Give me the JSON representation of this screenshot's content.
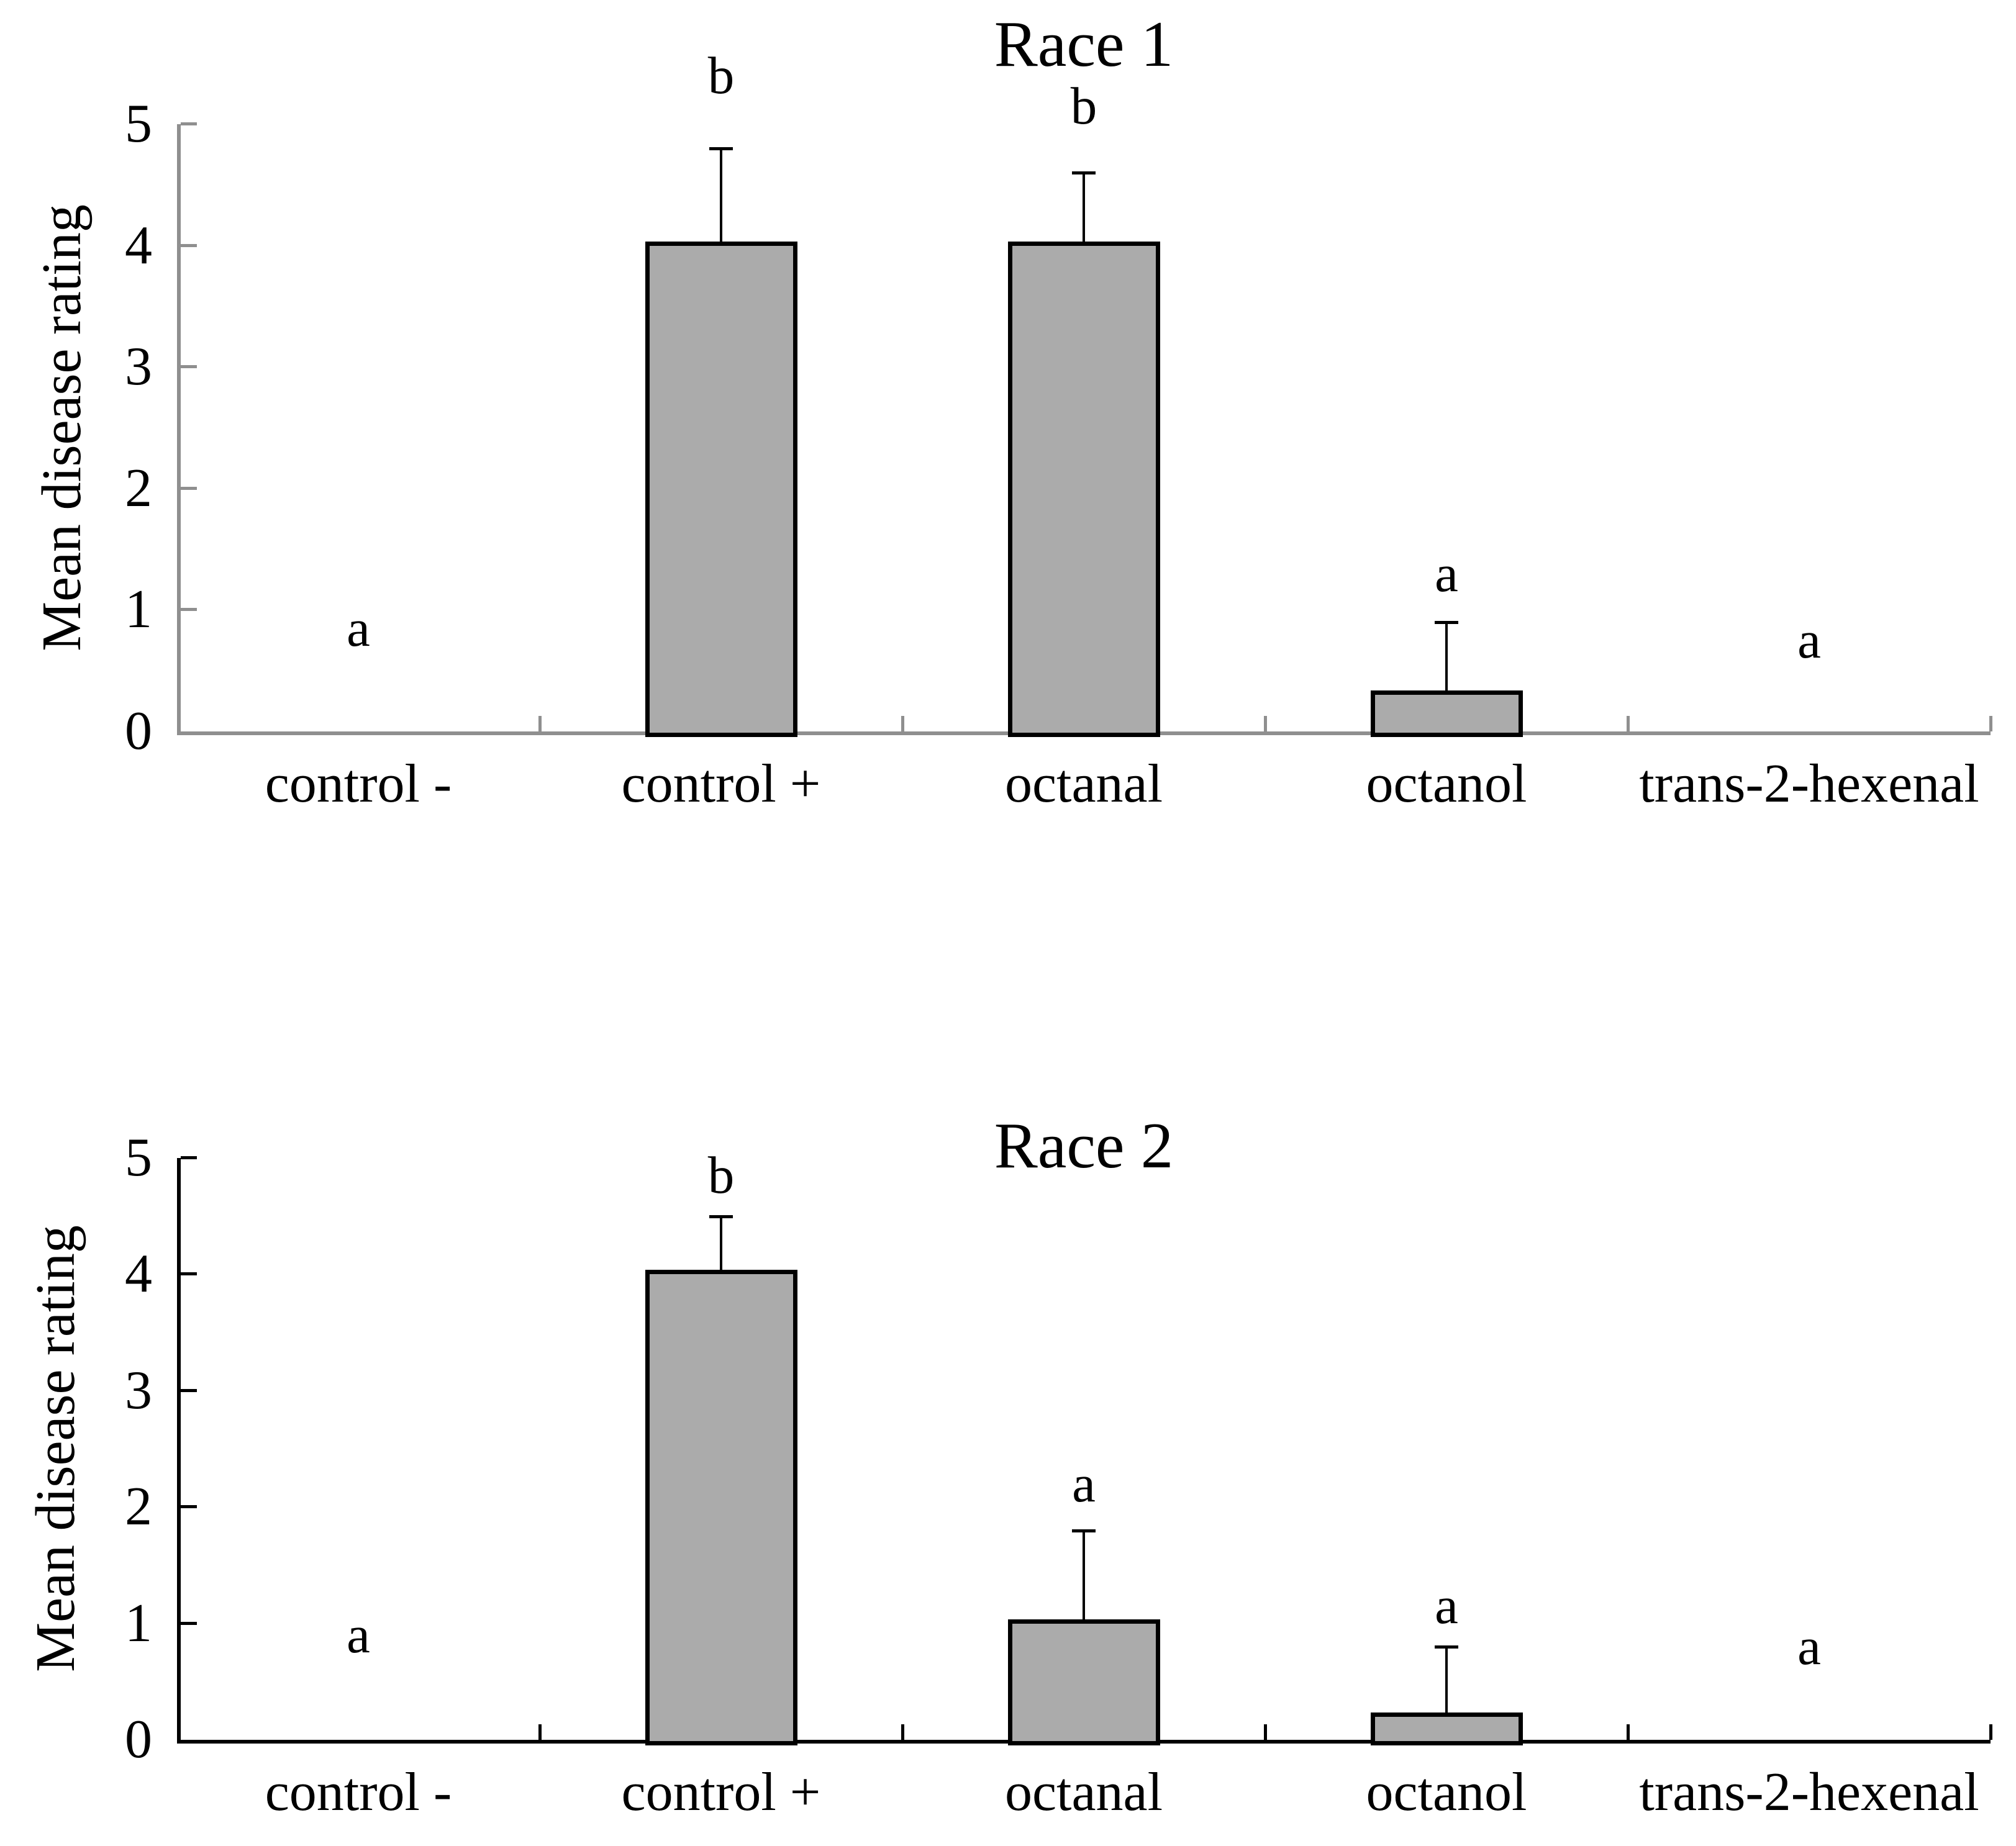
{
  "figure": {
    "background": "#ffffff",
    "text_color": "#000000"
  },
  "chart_data": [
    {
      "type": "bar",
      "title": "Race 1",
      "ylabel": "Mean disease rating",
      "xlabel": "",
      "ylim": [
        0,
        5
      ],
      "yticks": [
        0,
        1,
        2,
        3,
        4,
        5
      ],
      "grid": "off",
      "legend": "none",
      "categories": [
        "control -",
        "control +",
        "octanal",
        "octanol",
        "trans-2-hexenal"
      ],
      "values": [
        0,
        4,
        4,
        0.3,
        0
      ],
      "error_bar_tops": [
        null,
        4.8,
        4.6,
        0.9,
        null
      ],
      "sig_letters": [
        "a",
        "b",
        "b",
        "a",
        "a"
      ],
      "sig_letter_heights": [
        0.85,
        5.4,
        5.15,
        1.3,
        0.75
      ],
      "axis_color": "#8f8f8f",
      "bar_fill": "#ababab",
      "bar_border": "#000000"
    },
    {
      "type": "bar",
      "title": "Race 2",
      "ylabel": "Mean disease rating",
      "xlabel": "",
      "ylim": [
        0,
        5
      ],
      "yticks": [
        0,
        1,
        2,
        3,
        4,
        5
      ],
      "grid": "off",
      "legend": "none",
      "categories": [
        "control -",
        "control +",
        "octanal",
        "octanol",
        "trans-2-hexenal"
      ],
      "values": [
        0,
        4,
        1,
        0.2,
        0
      ],
      "error_bar_tops": [
        null,
        4.5,
        1.8,
        0.8,
        null
      ],
      "sig_letters": [
        "a",
        "b",
        "a",
        "a",
        "a"
      ],
      "sig_letter_heights": [
        0.9,
        4.85,
        2.2,
        1.15,
        0.8
      ],
      "axis_color": "#000000",
      "bar_fill": "#ababab",
      "bar_border": "#000000"
    }
  ]
}
